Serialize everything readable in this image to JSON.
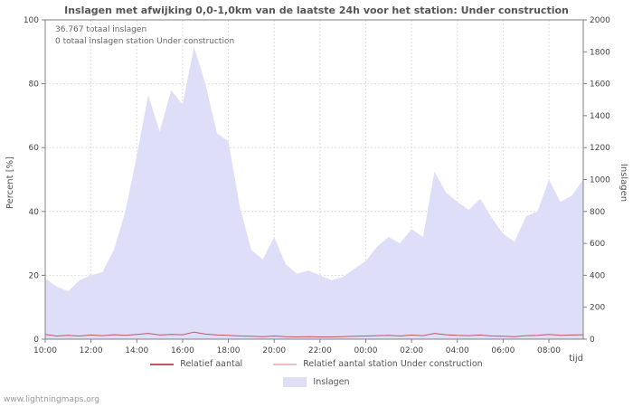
{
  "page": {
    "watermark": "www.lightningmaps.org"
  },
  "chart_data": {
    "type": "area",
    "title": "Inslagen met afwijking 0,0-1,0km van de laatste 24h voor het station: Under construction",
    "annotations": [
      "36.767 totaal inslagen",
      "0 totaal inslagen station Under construction"
    ],
    "ylabel_left": "Percent  [%]",
    "ylabel_right": "Inslagen",
    "xlabel": "tijd",
    "ylim_left": [
      0,
      100
    ],
    "ylim_right": [
      0,
      2000
    ],
    "yticks_left": [
      0,
      20,
      40,
      60,
      80,
      100
    ],
    "yticks_right": [
      0,
      200,
      400,
      600,
      800,
      1000,
      1200,
      1400,
      1600,
      1800,
      2000
    ],
    "x_start_hour": 10,
    "x_step_hours": 0.5,
    "x_total_hours": 23.5,
    "grid": true,
    "legend_position": "bottom",
    "xticks": [
      {
        "hour": 10,
        "label": "10:00"
      },
      {
        "hour": 12,
        "label": "12:00"
      },
      {
        "hour": 14,
        "label": "14:00"
      },
      {
        "hour": 16,
        "label": "16:00"
      },
      {
        "hour": 18,
        "label": "18:00"
      },
      {
        "hour": 20,
        "label": "20:00"
      },
      {
        "hour": 22,
        "label": "22:00"
      },
      {
        "hour": 24,
        "label": "00:00"
      },
      {
        "hour": 26,
        "label": "02:00"
      },
      {
        "hour": 28,
        "label": "04:00"
      },
      {
        "hour": 30,
        "label": "06:00"
      },
      {
        "hour": 32,
        "label": "08:00"
      }
    ],
    "series": [
      {
        "name": "Inslagen",
        "axis": "right",
        "style": "area",
        "color": "#dedef8",
        "values": [
          380,
          330,
          300,
          370,
          400,
          420,
          560,
          800,
          1150,
          1530,
          1300,
          1560,
          1470,
          1830,
          1600,
          1290,
          1240,
          830,
          560,
          500,
          640,
          470,
          410,
          430,
          400,
          370,
          390,
          440,
          490,
          580,
          640,
          600,
          690,
          640,
          1050,
          920,
          860,
          810,
          880,
          760,
          660,
          610,
          770,
          800,
          1000,
          860,
          900,
          1000
        ]
      },
      {
        "name": "Relatief aantal station Under construction",
        "axis": "left",
        "style": "line",
        "color": "#f2bcc4",
        "values": [
          0,
          0,
          0,
          0,
          0,
          0,
          0,
          0,
          0,
          0,
          0,
          0,
          0,
          0,
          0,
          0,
          0,
          0,
          0,
          0,
          0,
          0,
          0,
          0,
          0,
          0,
          0,
          0,
          0,
          0,
          0,
          0,
          0,
          0,
          0,
          0,
          0,
          0,
          0,
          0,
          0,
          0,
          0,
          0,
          0,
          0,
          0,
          0
        ]
      },
      {
        "name": "Relatief aantal",
        "axis": "left",
        "style": "line",
        "color": "#c35561",
        "values": [
          1.5,
          1.0,
          1.2,
          1.0,
          1.3,
          1.1,
          1.4,
          1.2,
          1.5,
          1.8,
          1.3,
          1.5,
          1.4,
          2.2,
          1.6,
          1.3,
          1.2,
          1.0,
          0.9,
          0.8,
          1.0,
          0.8,
          0.7,
          0.8,
          0.7,
          0.7,
          0.8,
          0.9,
          1.0,
          1.1,
          1.2,
          1.0,
          1.3,
          1.1,
          1.8,
          1.4,
          1.2,
          1.1,
          1.3,
          1.0,
          0.9,
          0.8,
          1.1,
          1.2,
          1.5,
          1.2,
          1.3,
          1.4
        ]
      }
    ],
    "legend": [
      {
        "label": "Relatief aantal",
        "swatch": "line",
        "color": "#c35561"
      },
      {
        "label": "Relatief aantal station Under construction",
        "swatch": "line",
        "color": "#f2bcc4"
      },
      {
        "label": "Inslagen",
        "swatch": "area",
        "color": "#dedef8"
      }
    ]
  }
}
